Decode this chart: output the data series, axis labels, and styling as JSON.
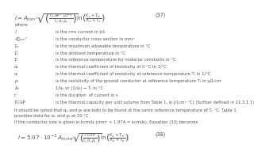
{
  "background_color": "#ffffff",
  "eq57_label": "(37)",
  "eq58_label": "(38)",
  "where_text": "where",
  "variables": [
    [
      "I",
      "is the rms current in kA"
    ],
    [
      "A₝ₘₘ²",
      "is the conductor cross section in mm²"
    ],
    [
      "Tₘ",
      "is the maximum allowable temperature in °C"
    ],
    [
      "Tₐ",
      "is the ambient temperature in °C"
    ],
    [
      "Tᵣ",
      "is the reference temperature for material constants in °C"
    ],
    [
      "αₒ",
      "is the thermal coefficient of resistivity at 0 °C in 1/°C"
    ],
    [
      "αᵣ",
      "is the thermal coefficient of resistivity at reference temperature Tᵣ in 1/°C"
    ],
    [
      "ρᵣ",
      "is the resistivity of the ground conductor at reference temperature Tᵣ in μΩ·cm"
    ],
    [
      "Kₒ",
      "1/αₒ or (1/αᵣ) − Tᵣ in °C"
    ],
    [
      "tᶜ",
      "is the duration  of current in s"
    ],
    [
      "TCAP",
      "is the thermal capacity per unit volume from Table 1, in J/(cm³·°C) (further defined in 11.3.1.1)"
    ]
  ],
  "note_line1": "It should be noted that αₒ and ρᵣ are both to be found at the same reference temperature of Tᵣ °C. Table 1",
  "note_line2": "provides data for αₒ and ρᵣ at 20 °C.",
  "kcmil_text": "If the conductor size is given in kcmils (mm² × 1.974 = kcmils), Equation (33) becomes",
  "text_color": "#555555",
  "fs_eq": 5.2,
  "fs_text": 4.0,
  "fs_var": 3.8,
  "fs_note": 3.8
}
